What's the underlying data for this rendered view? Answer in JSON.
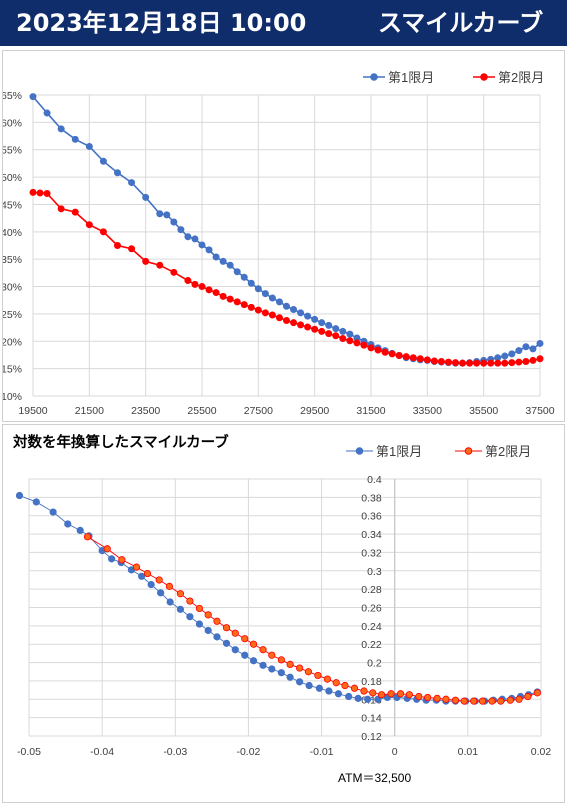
{
  "banner": {
    "date_time": "2023年12月18日 10:00",
    "title": "スマイルカーブ"
  },
  "colors": {
    "banner_bg": "#0f2c6b",
    "series1": "#4472c4",
    "series2": "#ff0000",
    "series2_fill": "#ff6a1a",
    "grid": "#d9d9d9"
  },
  "chart_data": [
    {
      "type": "line",
      "title": "",
      "xlabel": "",
      "ylabel": "",
      "legend_position": "top-right",
      "grid": true,
      "xlim": [
        19500,
        37500
      ],
      "ylim": [
        0.1,
        0.65
      ],
      "x_ticks": [
        19500,
        21500,
        23500,
        25500,
        27500,
        29500,
        31500,
        33500,
        35500,
        37500
      ],
      "x_tick_labels": [
        "19500",
        "21500",
        "23500",
        "25500",
        "27500",
        "29500",
        "31500",
        "33500",
        "35500",
        "37500"
      ],
      "y_ticks": [
        0.1,
        0.15,
        0.2,
        0.25,
        0.3,
        0.35,
        0.4,
        0.45,
        0.5,
        0.55,
        0.6,
        0.65
      ],
      "y_tick_labels": [
        "10%",
        "15%",
        "20%",
        "25%",
        "30%",
        "35%",
        "40%",
        "45%",
        "50%",
        "55%",
        "60%",
        "65%"
      ],
      "series": [
        {
          "name": "第1限月",
          "x": [
            19500,
            20000,
            20500,
            21000,
            21500,
            22000,
            22500,
            23000,
            23500,
            24000,
            24250,
            24500,
            24750,
            25000,
            25250,
            25500,
            25750,
            26000,
            26250,
            26500,
            26750,
            27000,
            27250,
            27500,
            27750,
            28000,
            28250,
            28500,
            28750,
            29000,
            29250,
            29500,
            29750,
            30000,
            30250,
            30500,
            30750,
            31000,
            31250,
            31500,
            31750,
            32000,
            32250,
            32500,
            32750,
            33000,
            33250,
            33500,
            33750,
            34000,
            34250,
            34500,
            34750,
            35000,
            35250,
            35500,
            35750,
            36000,
            36250,
            36500,
            36750,
            37000,
            37250,
            37500
          ],
          "y": [
            0.647,
            0.617,
            0.588,
            0.569,
            0.556,
            0.529,
            0.508,
            0.49,
            0.463,
            0.433,
            0.431,
            0.418,
            0.404,
            0.391,
            0.387,
            0.376,
            0.367,
            0.354,
            0.346,
            0.339,
            0.327,
            0.317,
            0.306,
            0.296,
            0.287,
            0.279,
            0.272,
            0.264,
            0.258,
            0.252,
            0.246,
            0.24,
            0.234,
            0.229,
            0.223,
            0.218,
            0.213,
            0.206,
            0.2,
            0.194,
            0.188,
            0.183,
            0.178,
            0.174,
            0.17,
            0.168,
            0.166,
            0.165,
            0.163,
            0.162,
            0.161,
            0.16,
            0.16,
            0.161,
            0.163,
            0.165,
            0.167,
            0.17,
            0.173,
            0.177,
            0.183,
            0.19,
            0.186,
            0.196
          ]
        },
        {
          "name": "第2限月",
          "x": [
            19500,
            19750,
            20000,
            20500,
            21000,
            21500,
            22000,
            22500,
            23000,
            23500,
            24000,
            24500,
            25000,
            25250,
            25500,
            25750,
            26000,
            26250,
            26500,
            26750,
            27000,
            27250,
            27500,
            27750,
            28000,
            28250,
            28500,
            28750,
            29000,
            29250,
            29500,
            29750,
            30000,
            30250,
            30500,
            30750,
            31000,
            31250,
            31500,
            31750,
            32000,
            32250,
            32500,
            32750,
            33000,
            33250,
            33500,
            33750,
            34000,
            34250,
            34500,
            34750,
            35000,
            35250,
            35500,
            35750,
            36000,
            36250,
            36500,
            36750,
            37000,
            37250,
            37500
          ],
          "y": [
            0.472,
            0.471,
            0.47,
            0.442,
            0.436,
            0.413,
            0.4,
            0.375,
            0.369,
            0.346,
            0.339,
            0.326,
            0.311,
            0.304,
            0.3,
            0.294,
            0.289,
            0.282,
            0.277,
            0.272,
            0.267,
            0.262,
            0.257,
            0.252,
            0.248,
            0.243,
            0.238,
            0.234,
            0.23,
            0.226,
            0.222,
            0.218,
            0.214,
            0.21,
            0.205,
            0.201,
            0.197,
            0.193,
            0.188,
            0.184,
            0.18,
            0.177,
            0.174,
            0.172,
            0.17,
            0.168,
            0.166,
            0.164,
            0.163,
            0.162,
            0.161,
            0.16,
            0.16,
            0.16,
            0.16,
            0.16,
            0.16,
            0.16,
            0.161,
            0.162,
            0.163,
            0.165,
            0.168
          ]
        }
      ]
    },
    {
      "type": "scatter",
      "title": "対数を年換算したスマイルカーブ",
      "xlabel": "",
      "ylabel": "",
      "annotation": "ATM＝32,500",
      "legend_position": "top-right",
      "grid": true,
      "xlim": [
        -0.05,
        0.02
      ],
      "ylim": [
        0.12,
        0.4
      ],
      "x_ticks": [
        -0.05,
        -0.04,
        -0.03,
        -0.02,
        -0.01,
        0,
        0.01,
        0.02
      ],
      "x_tick_labels": [
        "-0.05",
        "-0.04",
        "-0.03",
        "-0.02",
        "-0.01",
        "0",
        "0.01",
        "0.02"
      ],
      "y_ticks": [
        0.12,
        0.14,
        0.16,
        0.18,
        0.2,
        0.22,
        0.24,
        0.26,
        0.28,
        0.3,
        0.32,
        0.34,
        0.36,
        0.38,
        0.4
      ],
      "y_tick_labels": [
        "0.12",
        "0.14",
        "0.16",
        "0.18",
        "0.2",
        "0.22",
        "0.24",
        "0.26",
        "0.28",
        "0.3",
        "0.32",
        "0.34",
        "0.36",
        "0.38",
        "0.4"
      ],
      "series": [
        {
          "name": "第1限月",
          "x": [
            -0.0513,
            -0.049,
            -0.0467,
            -0.0447,
            -0.043,
            -0.0418,
            -0.04,
            -0.0387,
            -0.0374,
            -0.036,
            -0.0346,
            -0.0333,
            -0.032,
            -0.0307,
            -0.0293,
            -0.028,
            -0.0267,
            -0.0255,
            -0.0243,
            -0.023,
            -0.0218,
            -0.0205,
            -0.0193,
            -0.018,
            -0.0168,
            -0.0155,
            -0.0143,
            -0.013,
            -0.0117,
            -0.0103,
            -0.009,
            -0.0077,
            -0.0063,
            -0.005,
            -0.0037,
            -0.0023,
            -0.001,
            0.0003,
            0.0017,
            0.003,
            0.0043,
            0.0057,
            0.007,
            0.0083,
            0.0097,
            0.011,
            0.0123,
            0.0135,
            0.0147,
            0.016,
            0.0172,
            0.0183,
            0.0195
          ],
          "y": [
            0.382,
            0.375,
            0.364,
            0.351,
            0.344,
            0.338,
            0.322,
            0.313,
            0.309,
            0.301,
            0.294,
            0.285,
            0.276,
            0.266,
            0.258,
            0.25,
            0.242,
            0.235,
            0.228,
            0.221,
            0.214,
            0.208,
            0.202,
            0.197,
            0.193,
            0.189,
            0.184,
            0.179,
            0.175,
            0.172,
            0.169,
            0.166,
            0.163,
            0.161,
            0.16,
            0.16,
            0.162,
            0.162,
            0.161,
            0.16,
            0.159,
            0.159,
            0.158,
            0.158,
            0.158,
            0.158,
            0.158,
            0.159,
            0.16,
            0.161,
            0.163,
            0.165,
            0.168
          ]
        },
        {
          "name": "第2限月",
          "x": [
            -0.042,
            -0.0393,
            -0.0373,
            -0.0353,
            -0.0338,
            -0.0322,
            -0.0308,
            -0.0293,
            -0.028,
            -0.0267,
            -0.0255,
            -0.0243,
            -0.023,
            -0.0218,
            -0.0205,
            -0.0193,
            -0.018,
            -0.0168,
            -0.0155,
            -0.0143,
            -0.013,
            -0.0118,
            -0.0105,
            -0.0092,
            -0.008,
            -0.0068,
            -0.0055,
            -0.0042,
            -0.003,
            -0.0018,
            -0.0005,
            0.0008,
            0.002,
            0.0033,
            0.0045,
            0.0058,
            0.007,
            0.0083,
            0.0095,
            0.0108,
            0.012,
            0.0133,
            0.0145,
            0.0158,
            0.017,
            0.0182,
            0.0195
          ],
          "y": [
            0.337,
            0.324,
            0.312,
            0.304,
            0.297,
            0.29,
            0.283,
            0.275,
            0.267,
            0.259,
            0.252,
            0.245,
            0.238,
            0.232,
            0.226,
            0.22,
            0.214,
            0.208,
            0.203,
            0.198,
            0.194,
            0.19,
            0.186,
            0.182,
            0.178,
            0.175,
            0.172,
            0.169,
            0.167,
            0.165,
            0.166,
            0.166,
            0.165,
            0.163,
            0.162,
            0.161,
            0.16,
            0.159,
            0.158,
            0.158,
            0.158,
            0.158,
            0.158,
            0.159,
            0.16,
            0.163,
            0.167
          ]
        }
      ]
    }
  ]
}
